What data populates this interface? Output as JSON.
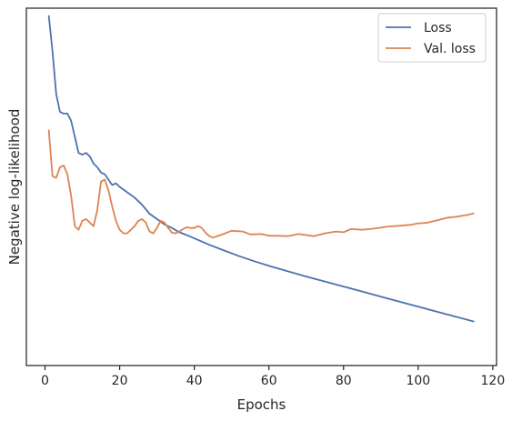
{
  "chart_data": {
    "type": "line",
    "title": "",
    "xlabel": "Epochs",
    "ylabel": "Negative log-likelihood",
    "xlim": [
      -5,
      121
    ],
    "ylim": [
      0,
      1
    ],
    "x_ticks": [
      0,
      20,
      40,
      60,
      80,
      100,
      120
    ],
    "y_ticks_labeled": false,
    "grid": false,
    "legend_position": "top-right",
    "series": [
      {
        "name": "Loss",
        "color": "#4c72b0",
        "x": [
          1,
          2,
          3,
          4,
          5,
          6,
          7,
          8,
          9,
          10,
          11,
          12,
          13,
          14,
          15,
          16,
          17,
          18,
          19,
          20,
          22,
          24,
          26,
          28,
          30,
          32,
          34,
          36,
          38,
          40,
          44,
          48,
          52,
          56,
          60,
          65,
          70,
          75,
          80,
          85,
          90,
          95,
          100,
          105,
          110,
          115
        ],
        "y": [
          0.98,
          0.88,
          0.76,
          0.71,
          0.705,
          0.705,
          0.685,
          0.64,
          0.595,
          0.59,
          0.595,
          0.585,
          0.565,
          0.555,
          0.54,
          0.535,
          0.52,
          0.505,
          0.51,
          0.5,
          0.485,
          0.47,
          0.45,
          0.425,
          0.41,
          0.395,
          0.385,
          0.373,
          0.365,
          0.356,
          0.338,
          0.322,
          0.306,
          0.292,
          0.279,
          0.264,
          0.249,
          0.235,
          0.221,
          0.207,
          0.193,
          0.179,
          0.165,
          0.151,
          0.137,
          0.123
        ]
      },
      {
        "name": "Val. loss",
        "color": "#dd8452",
        "x": [
          1,
          2,
          3,
          4,
          5,
          6,
          7,
          8,
          9,
          10,
          11,
          12,
          13,
          14,
          15,
          16,
          17,
          18,
          19,
          20,
          21,
          22,
          23,
          24,
          25,
          26,
          27,
          28,
          29,
          30,
          31,
          32,
          33,
          34,
          35,
          36,
          37,
          38,
          39,
          40,
          41,
          42,
          43,
          44,
          45,
          47,
          50,
          53,
          55,
          58,
          60,
          62,
          65,
          68,
          72,
          75,
          78,
          80,
          82,
          85,
          88,
          92,
          95,
          98,
          100,
          102,
          105,
          108,
          110,
          113,
          115
        ],
        "y": [
          0.66,
          0.53,
          0.525,
          0.555,
          0.56,
          0.535,
          0.475,
          0.39,
          0.38,
          0.405,
          0.41,
          0.4,
          0.39,
          0.435,
          0.515,
          0.52,
          0.49,
          0.445,
          0.405,
          0.38,
          0.37,
          0.37,
          0.38,
          0.39,
          0.405,
          0.41,
          0.4,
          0.375,
          0.37,
          0.385,
          0.405,
          0.4,
          0.385,
          0.372,
          0.37,
          0.375,
          0.382,
          0.387,
          0.385,
          0.385,
          0.39,
          0.385,
          0.372,
          0.362,
          0.358,
          0.365,
          0.377,
          0.375,
          0.367,
          0.368,
          0.363,
          0.363,
          0.362,
          0.368,
          0.362,
          0.37,
          0.375,
          0.373,
          0.382,
          0.38,
          0.383,
          0.389,
          0.391,
          0.394,
          0.398,
          0.399,
          0.406,
          0.414,
          0.416,
          0.421,
          0.426
        ]
      }
    ]
  }
}
